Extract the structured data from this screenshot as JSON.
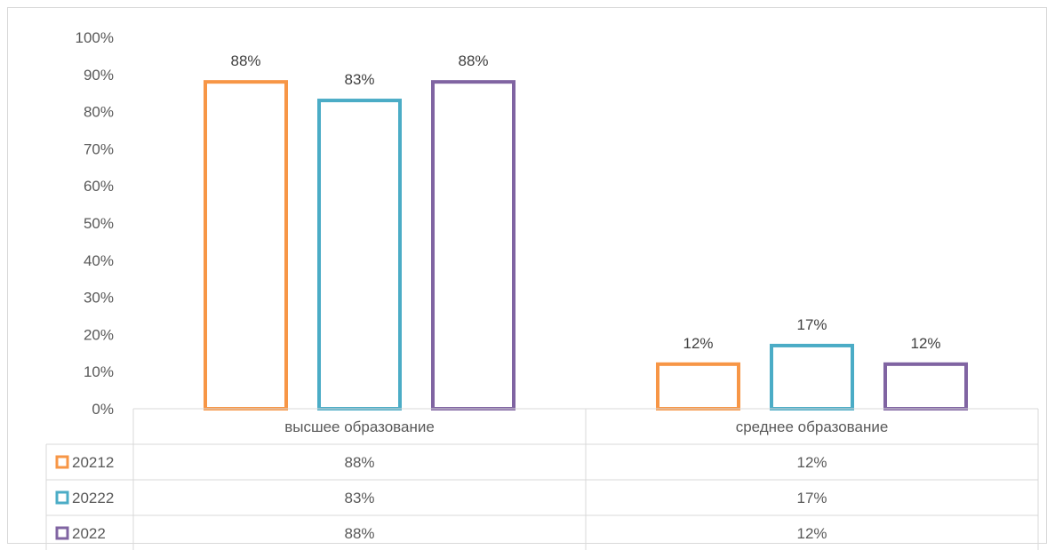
{
  "chart_data": {
    "type": "bar",
    "categories": [
      "высшее образование",
      "среднее образование"
    ],
    "series": [
      {
        "name": "20212",
        "color": "#f79646",
        "values": [
          88,
          12
        ],
        "labels": [
          "88%",
          "12%"
        ]
      },
      {
        "name": "20222",
        "color": "#4bacc6",
        "values": [
          83,
          17
        ],
        "labels": [
          "83%",
          "17%"
        ]
      },
      {
        "name": "2022",
        "color": "#8064a2",
        "values": [
          88,
          12
        ],
        "labels": [
          "88%",
          "12%"
        ]
      }
    ],
    "yticks": [
      "0%",
      "10%",
      "20%",
      "30%",
      "40%",
      "50%",
      "60%",
      "70%",
      "80%",
      "90%",
      "100%"
    ],
    "ylim": [
      0,
      100
    ],
    "data_table": true,
    "grid": false,
    "bar_style": "outline"
  }
}
